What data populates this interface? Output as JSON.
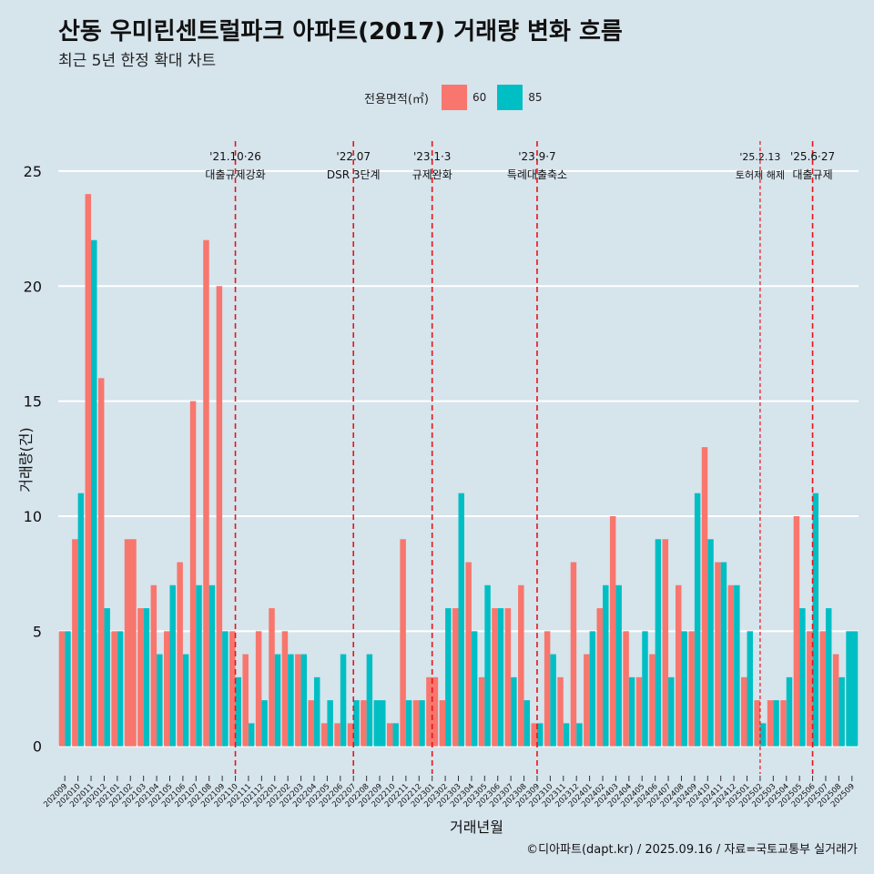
{
  "title": "산동 우미린센트럴파크 아파트(2017) 거래량 변화 흐름",
  "subtitle": "최근 5년 한정 확대 차트",
  "caption": "©디아파트(dapt.kr) / 2025.09.16 / 자료=국토교통부 실거래가",
  "legend": {
    "title": "전용면적(㎡)",
    "items": [
      {
        "label": "60",
        "color": "#f8766d"
      },
      {
        "label": "85",
        "color": "#00bfc4"
      }
    ]
  },
  "chart_data": {
    "type": "bar",
    "xlabel": "거래년월",
    "ylabel": "거래량(건)",
    "ylim": [
      -1.2,
      26.5
    ],
    "yticks": [
      0,
      5,
      10,
      15,
      20,
      25
    ],
    "categories": [
      "202009",
      "202010",
      "202011",
      "202012",
      "202101",
      "202102",
      "202103",
      "202104",
      "202105",
      "202106",
      "202107",
      "202108",
      "202109",
      "202110",
      "202111",
      "202112",
      "202201",
      "202202",
      "202203",
      "202204",
      "202205",
      "202206",
      "202207",
      "202208",
      "202209",
      "202210",
      "202211",
      "202212",
      "202301",
      "202302",
      "202303",
      "202304",
      "202305",
      "202306",
      "202307",
      "202308",
      "202309",
      "202310",
      "202311",
      "202312",
      "202401",
      "202402",
      "202403",
      "202404",
      "202405",
      "202406",
      "202407",
      "202408",
      "202409",
      "202410",
      "202411",
      "202412",
      "202501",
      "202502",
      "202503",
      "202504",
      "202505",
      "202506",
      "202507",
      "202508",
      "202509"
    ],
    "series": [
      {
        "name": "60",
        "color": "#f8766d",
        "values": [
          5,
          9,
          24,
          16,
          5,
          9,
          6,
          7,
          5,
          8,
          15,
          22,
          20,
          5,
          4,
          5,
          6,
          5,
          4,
          2,
          1,
          1,
          1,
          2,
          0,
          1,
          9,
          2,
          3,
          2,
          6,
          8,
          3,
          6,
          6,
          7,
          1,
          5,
          3,
          8,
          4,
          6,
          10,
          5,
          3,
          4,
          9,
          7,
          5,
          13,
          8,
          7,
          3,
          2,
          2,
          2,
          10,
          5,
          5,
          4,
          0
        ]
      },
      {
        "name": "85",
        "color": "#00bfc4",
        "values": [
          5,
          11,
          22,
          6,
          5,
          0,
          6,
          4,
          7,
          4,
          7,
          7,
          5,
          3,
          1,
          2,
          4,
          4,
          4,
          3,
          2,
          4,
          2,
          4,
          2,
          1,
          2,
          2,
          0,
          6,
          11,
          5,
          7,
          6,
          3,
          2,
          1,
          4,
          1,
          1,
          5,
          7,
          7,
          3,
          5,
          9,
          3,
          5,
          11,
          9,
          8,
          7,
          5,
          1,
          2,
          3,
          6,
          11,
          6,
          3,
          5
        ]
      }
    ],
    "annotations": [
      {
        "category": "202110",
        "line1": "'21.10·26",
        "line2": "대출규제강화",
        "style": "dashed"
      },
      {
        "category": "202207",
        "line1": "'22.07",
        "line2": "DSR 3단계",
        "style": "dashed"
      },
      {
        "category": "202301",
        "line1": "'23.1·3",
        "line2": "규제완화",
        "style": "dashed"
      },
      {
        "category": "202309",
        "line1": "'23.9·7",
        "line2": "특례대출축소",
        "style": "dashed"
      },
      {
        "category": "202502",
        "line1": "'25.2.13",
        "line2": "토허제 해제",
        "style": "fine-dashed"
      },
      {
        "category": "202506",
        "line1": "'25.6·27",
        "line2": "대출규제",
        "style": "dashed"
      }
    ]
  }
}
